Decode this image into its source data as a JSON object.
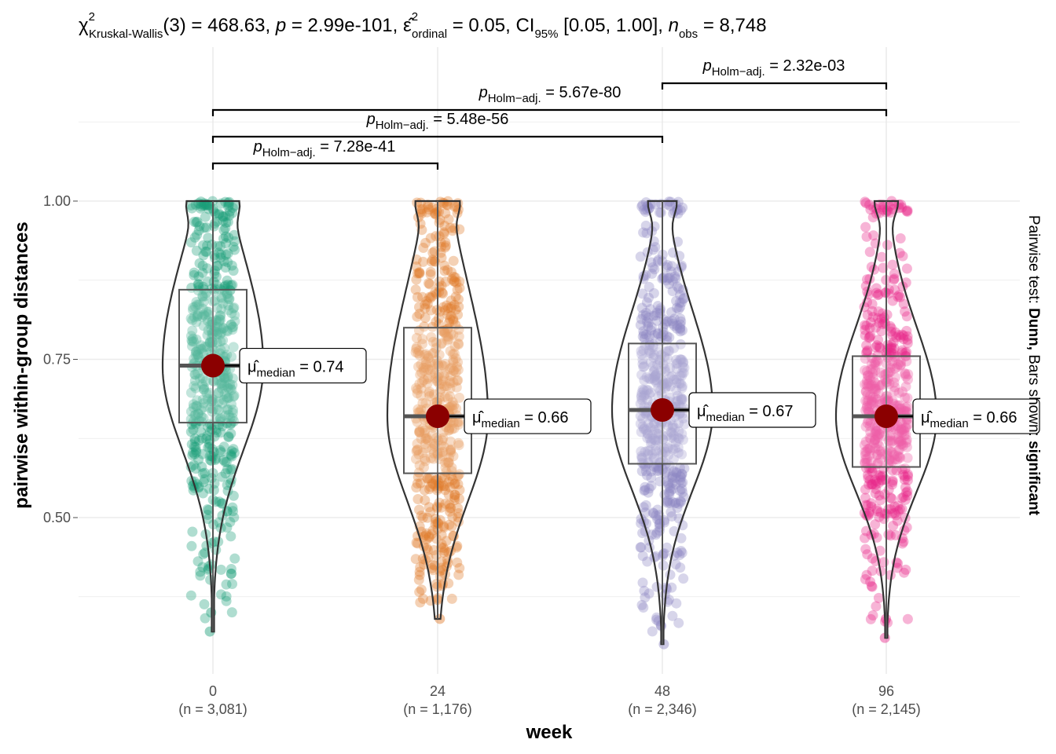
{
  "chart_data": {
    "type": "violin",
    "subtitle": {
      "chi_symbol": "χ",
      "chi_sup": "2",
      "chi_sub": "Kruskal-Wallis",
      "df": "(3) = 468.63, ",
      "p_label": "p",
      "p_value": " = 2.99e-101, ",
      "eps_symbol": "ε̂",
      "eps_sup": "2",
      "eps_sub": "ordinal",
      "eps_value": " = 0.05, CI",
      "ci_sub": "95%",
      "ci_value": " [0.05, 1.00], ",
      "n_label": "n",
      "n_sub": "obs",
      "n_value": " = 8,748"
    },
    "xlabel": "week",
    "ylabel": "pairwise within-group distances",
    "caption": {
      "prefix": "Pairwise test: ",
      "test": "Dunn,",
      "middle": " Bars shown: ",
      "shown": "significant"
    },
    "ylim": [
      0.22,
      1.25
    ],
    "y_ticks": [
      0.5,
      0.75,
      1.0
    ],
    "y_tick_labels": [
      "0.50",
      "0.75",
      "1.00"
    ],
    "groups": [
      {
        "name": "0",
        "n_label": "(n = 3,081)",
        "color": "#1B9E77",
        "min": 0.32,
        "q1": 0.65,
        "median": 0.74,
        "q3": 0.86,
        "max": 1.0,
        "median_label": "0.74"
      },
      {
        "name": "24",
        "n_label": "(n = 1,176)",
        "color": "#E07B2A",
        "min": 0.34,
        "q1": 0.57,
        "median": 0.66,
        "q3": 0.8,
        "max": 1.0,
        "median_label": "0.66"
      },
      {
        "name": "48",
        "n_label": "(n = 2,346)",
        "color": "#8C86C2",
        "min": 0.3,
        "q1": 0.585,
        "median": 0.67,
        "q3": 0.775,
        "max": 1.0,
        "median_label": "0.67"
      },
      {
        "name": "96",
        "n_label": "(n = 2,145)",
        "color": "#E7298A",
        "min": 0.31,
        "q1": 0.58,
        "median": 0.66,
        "q3": 0.755,
        "max": 1.0,
        "median_label": "0.66"
      }
    ],
    "median_label_prefix": "μ̂",
    "median_label_sub": "median",
    "comparisons": [
      {
        "from": "0",
        "to": "24",
        "p_symbol": "p",
        "p_sub": "Holm−adj.",
        "p_value": " = 7.28e-41"
      },
      {
        "from": "0",
        "to": "48",
        "p_symbol": "p",
        "p_sub": "Holm−adj.",
        "p_value": " = 5.48e-56"
      },
      {
        "from": "0",
        "to": "96",
        "p_symbol": "p",
        "p_sub": "Holm−adj.",
        "p_value": " = 5.67e-80"
      },
      {
        "from": "48",
        "to": "96",
        "p_symbol": "p",
        "p_sub": "Holm−adj.",
        "p_value": " = 2.32e-03"
      }
    ],
    "grid": true,
    "median_point_color": "#8B0000"
  }
}
